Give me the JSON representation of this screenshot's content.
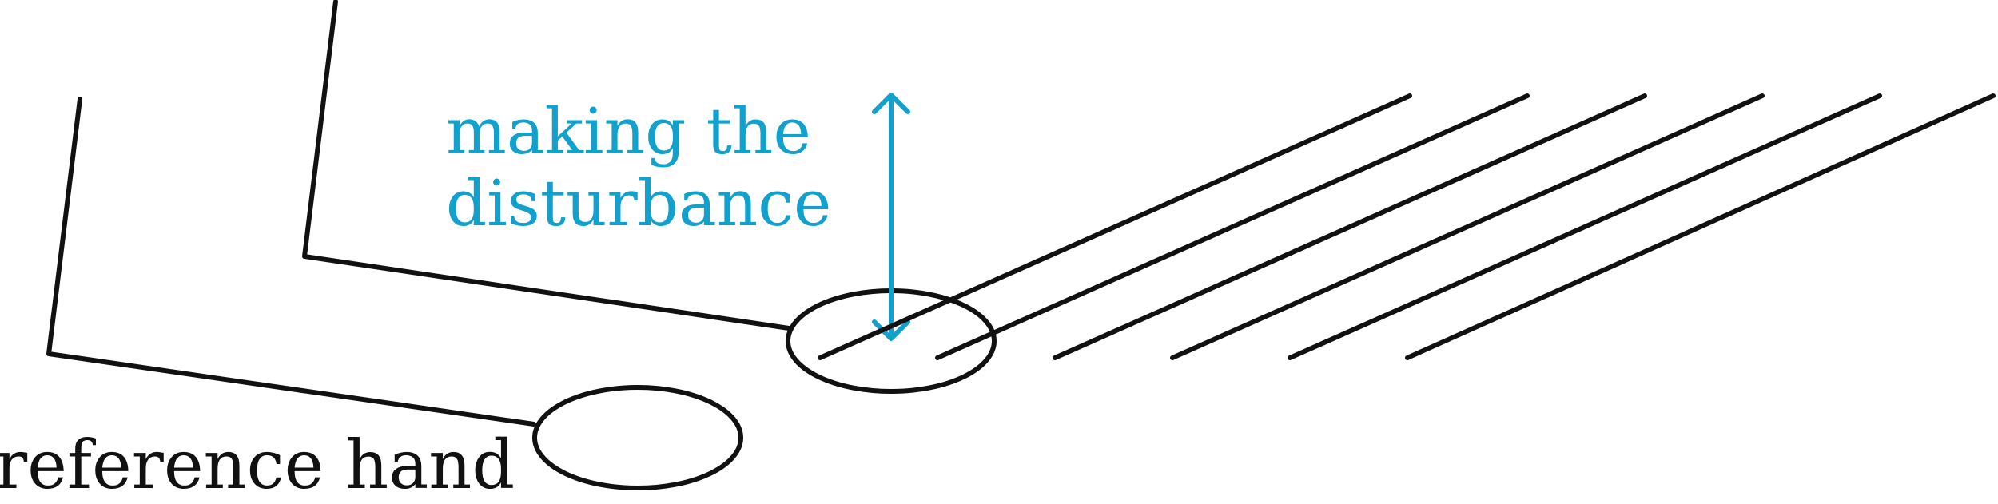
{
  "annotation": {
    "line1": "making the",
    "line2": "disturbance"
  },
  "labels": {
    "reference_hand": "reference hand"
  },
  "colors": {
    "ink": "#111111",
    "accent": "#12a0cc",
    "background": "#ffffff"
  },
  "icons": {
    "disturbance_arrow": "double-headed-vertical-arrow-icon"
  }
}
